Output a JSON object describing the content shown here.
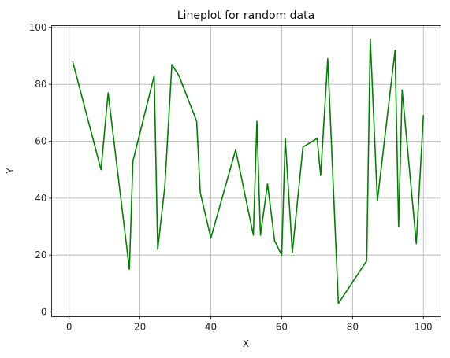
{
  "chart_data": {
    "type": "line",
    "title": "Lineplot for random data",
    "xlabel": "X",
    "ylabel": "Y",
    "xlim": [
      -4.95,
      104.95
    ],
    "ylim": [
      -1.65,
      100.65
    ],
    "xticks": [
      0,
      20,
      40,
      60,
      80,
      100
    ],
    "yticks": [
      0,
      20,
      40,
      60,
      80,
      100
    ],
    "grid": true,
    "line_color": "#008000",
    "series": [
      {
        "x": [
          1,
          9,
          11,
          17,
          18,
          24,
          25,
          27,
          29,
          31,
          36,
          37,
          40,
          47,
          52,
          53,
          54,
          56,
          58,
          60,
          61,
          63,
          66,
          70,
          71,
          73,
          76,
          84,
          85,
          87,
          92,
          93,
          94,
          98,
          100
        ],
        "y": [
          88,
          50,
          77,
          15,
          53,
          83,
          22,
          44,
          87,
          83,
          67,
          42,
          26,
          57,
          27,
          67,
          27,
          45,
          25,
          20,
          61,
          21,
          58,
          61,
          48,
          89,
          3,
          18,
          96,
          39,
          92,
          30,
          78,
          24,
          69
        ]
      }
    ]
  }
}
